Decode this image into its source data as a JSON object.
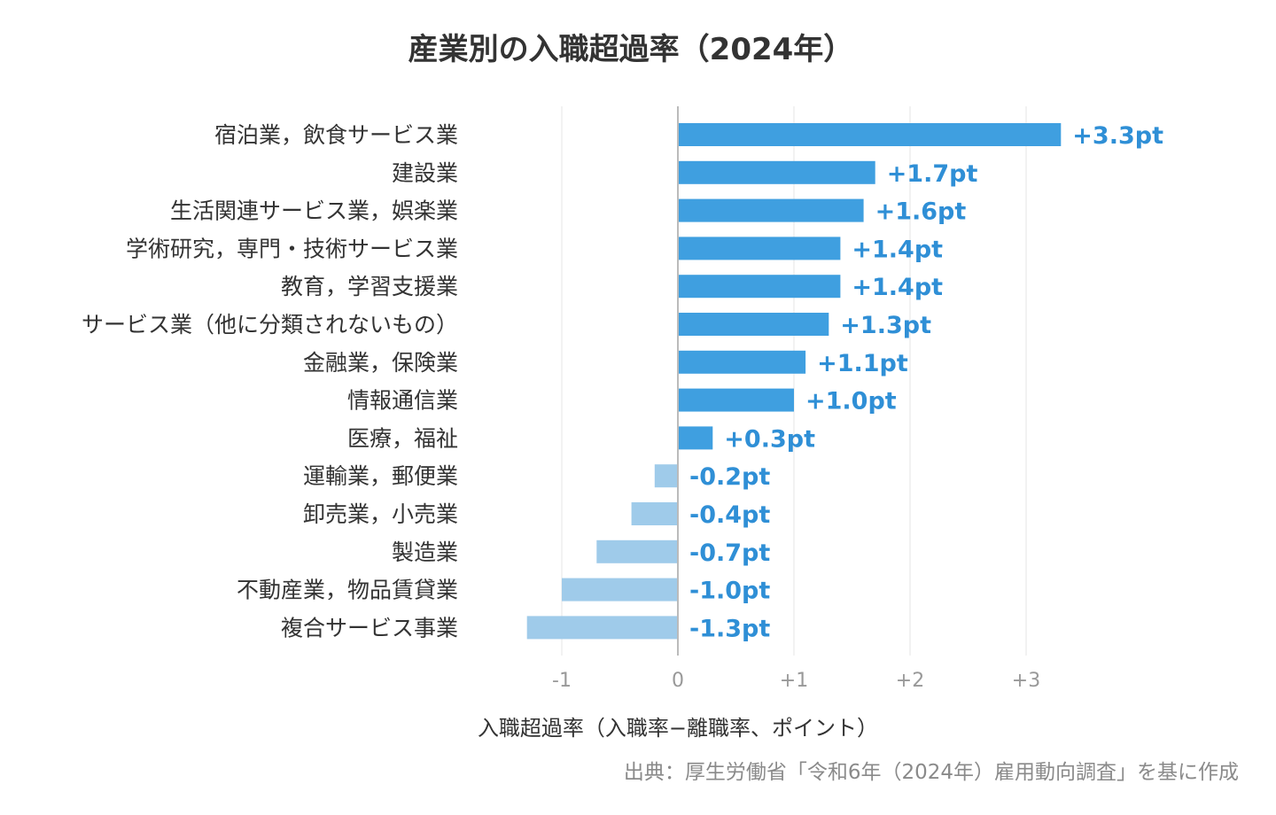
{
  "chart_data": {
    "type": "bar",
    "orientation": "horizontal",
    "title": "産業別の入職超過率（2024年）",
    "xlabel": "入職超過率（入職率−離職率、ポイント）",
    "ylabel": "",
    "source": "出典：厚生労働省「令和6年（2024年）雇用動向調査」を基に作成",
    "xlim": [
      -1.75,
      3.9
    ],
    "x_ticks": [
      -1,
      0,
      1,
      2,
      3
    ],
    "x_tick_labels": [
      "-1",
      "0",
      "+1",
      "+2",
      "+3"
    ],
    "grid": true,
    "unit": "pt",
    "categories": [
      "宿泊業，飲食サービス業",
      "建設業",
      "生活関連サービス業，娯楽業",
      "学術研究，専門・技術サービス業",
      "教育，学習支援業",
      "サービス業（他に分類されないもの）",
      "金融業，保険業",
      "情報通信業",
      "医療，福祉",
      "運輸業，郵便業",
      "卸売業，小売業",
      "製造業",
      "不動産業，物品賃貸業",
      "複合サービス事業"
    ],
    "values": [
      3.3,
      1.7,
      1.6,
      1.4,
      1.4,
      1.3,
      1.1,
      1.0,
      0.3,
      -0.2,
      -0.4,
      -0.7,
      -1.0,
      -1.3
    ],
    "value_labels": [
      "+3.3pt",
      "+1.7pt",
      "+1.6pt",
      "+1.4pt",
      "+1.4pt",
      "+1.3pt",
      "+1.1pt",
      "+1.0pt",
      "+0.3pt",
      "-0.2pt",
      "-0.4pt",
      "-0.7pt",
      "-1.0pt",
      "-1.3pt"
    ],
    "colors": {
      "positive": "#3f9fe0",
      "negative": "#9fcbea",
      "label": "#2f8fd6",
      "grid": "#eeeeee",
      "zero_line": "#bbbbbb",
      "tick": "#999999",
      "category_text": "#333333"
    }
  }
}
